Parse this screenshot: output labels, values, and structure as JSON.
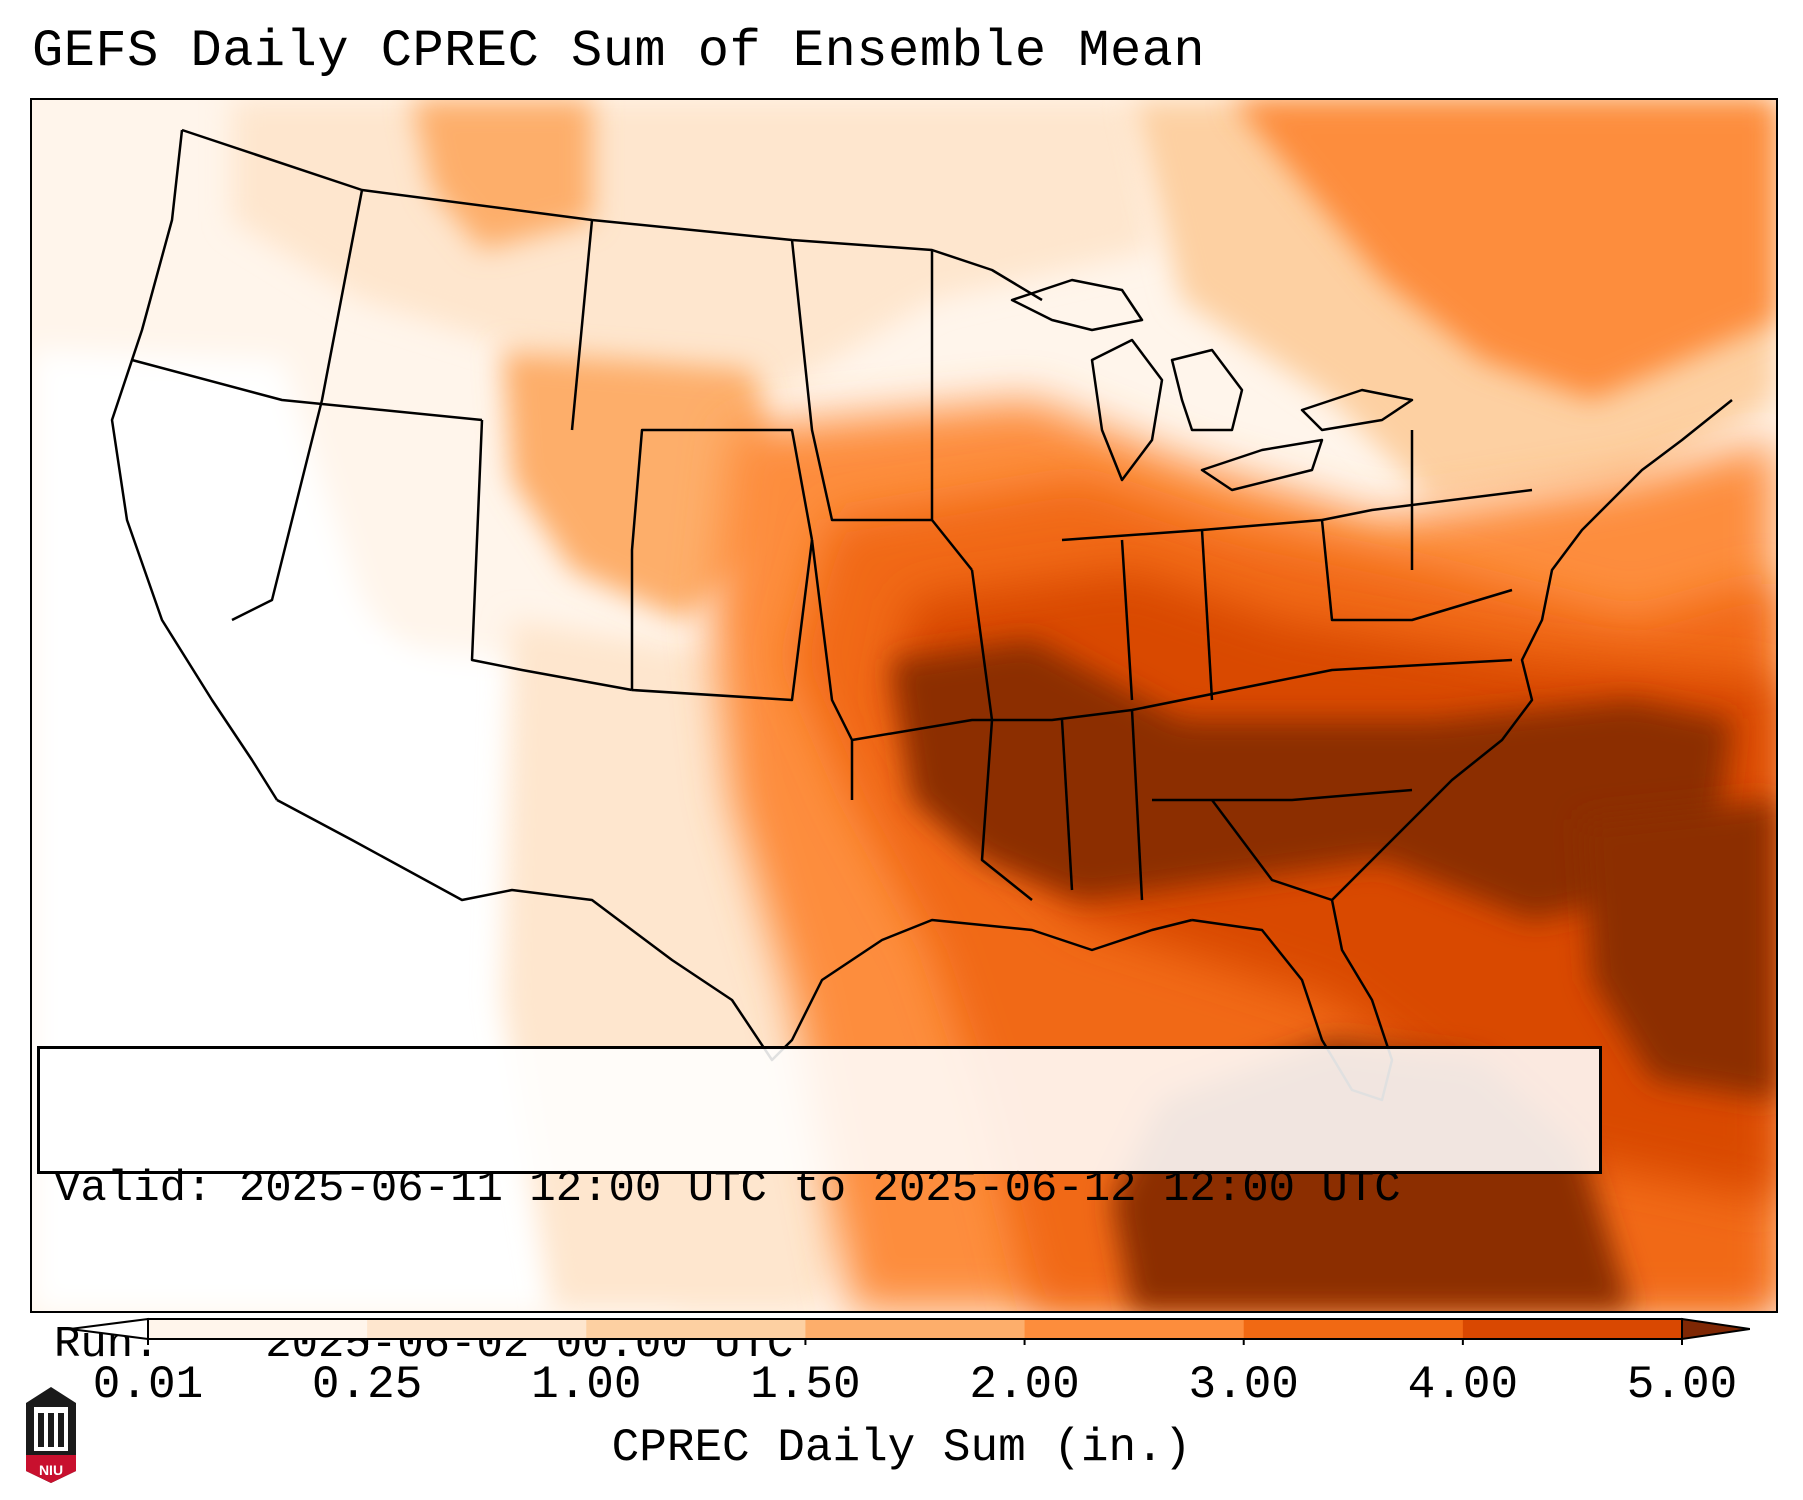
{
  "title": "GEFS Daily CPREC Sum of Ensemble Mean",
  "info": {
    "valid_label": "Valid:",
    "valid_value": "2025-06-11 12:00 UTC to 2025-06-12 12:00 UTC",
    "run_label": "Run:",
    "run_value": "2025-06-02 00:00 UTC"
  },
  "colorbar": {
    "label": "CPREC Daily Sum (in.)",
    "ticks": [
      "0.01",
      "0.25",
      "1.00",
      "1.50",
      "2.00",
      "3.00",
      "4.00",
      "5.00"
    ],
    "colors": [
      "#fff5eb",
      "#fee6ce",
      "#fdd0a2",
      "#fdae6b",
      "#fd8d3c",
      "#f16913",
      "#d94801",
      "#8c2d04"
    ],
    "under_color": "#ffffff",
    "over_color": "#7f2704"
  },
  "logo": {
    "text": "NIU",
    "color": "#c8102e"
  }
}
